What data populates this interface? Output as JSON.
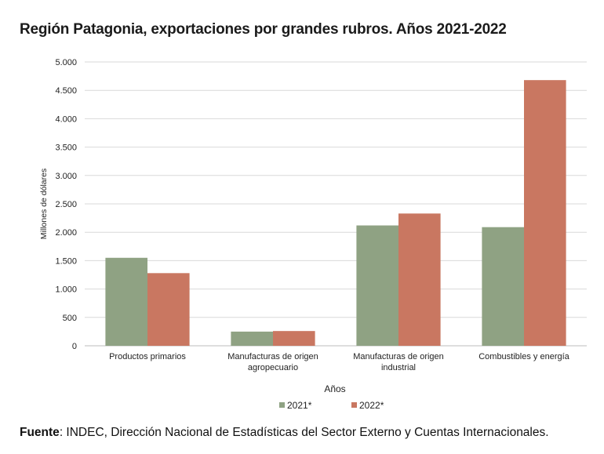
{
  "chart_data": {
    "type": "bar",
    "title": "Región Patagonia, exportaciones por grandes rubros. Años 2021-2022",
    "xlabel": "Años",
    "ylabel": "Millones de dólares",
    "ylim": [
      0,
      5000
    ],
    "yticks": [
      {
        "value": 0,
        "label": "0"
      },
      {
        "value": 500,
        "label": "500"
      },
      {
        "value": 1000,
        "label": "1.000"
      },
      {
        "value": 1500,
        "label": "1.500"
      },
      {
        "value": 2000,
        "label": "2.000"
      },
      {
        "value": 2500,
        "label": "2.500"
      },
      {
        "value": 3000,
        "label": "3.000"
      },
      {
        "value": 3500,
        "label": "3.500"
      },
      {
        "value": 4000,
        "label": "4.000"
      },
      {
        "value": 4500,
        "label": "4.500"
      },
      {
        "value": 5000,
        "label": "5.000"
      }
    ],
    "categories": [
      [
        "Productos primarios"
      ],
      [
        "Manufacturas de origen",
        "agropecuario"
      ],
      [
        "Manufacturas de origen",
        "industrial"
      ],
      [
        "Combustibles y energía"
      ]
    ],
    "series": [
      {
        "name": "2021*",
        "color": "#8fa283",
        "values": [
          1550,
          250,
          2120,
          2090
        ]
      },
      {
        "name": "2022*",
        "color": "#c97761",
        "values": [
          1280,
          260,
          2330,
          4680
        ]
      }
    ],
    "grid": true,
    "legend_position": "bottom"
  },
  "source": {
    "label": "Fuente",
    "text": ": INDEC, Dirección Nacional de Estadísticas del Sector Externo y Cuentas Internacionales."
  }
}
